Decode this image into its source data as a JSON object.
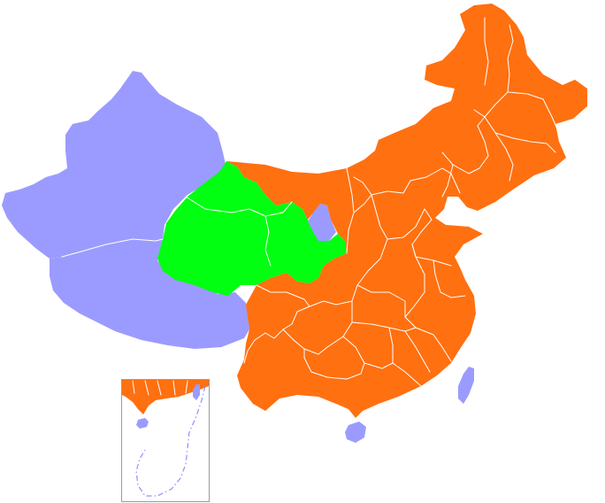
{
  "map": {
    "colors": {
      "orange": "#ff7010",
      "green": "#00ff10",
      "lavender": "#9b9bff",
      "inset_border": "#9a9a9a",
      "dash_line": "#8f8fff",
      "background": "#ffffff"
    },
    "regions": [
      {
        "name": "xinjiang",
        "color": "lavender"
      },
      {
        "name": "tibet",
        "color": "lavender"
      },
      {
        "name": "qinghai",
        "color": "green"
      },
      {
        "name": "gansu",
        "color": "green"
      },
      {
        "name": "ningxia",
        "color": "lavender"
      },
      {
        "name": "taiwan",
        "color": "lavender"
      },
      {
        "name": "hainan",
        "color": "lavender"
      },
      {
        "name": "inner-mongolia",
        "color": "orange"
      },
      {
        "name": "northeast-provinces",
        "color": "orange"
      },
      {
        "name": "central-eastern-southern-provinces",
        "color": "orange"
      },
      {
        "name": "southwest-provinces",
        "color": "orange"
      }
    ],
    "inset": {
      "label": ""
    }
  }
}
